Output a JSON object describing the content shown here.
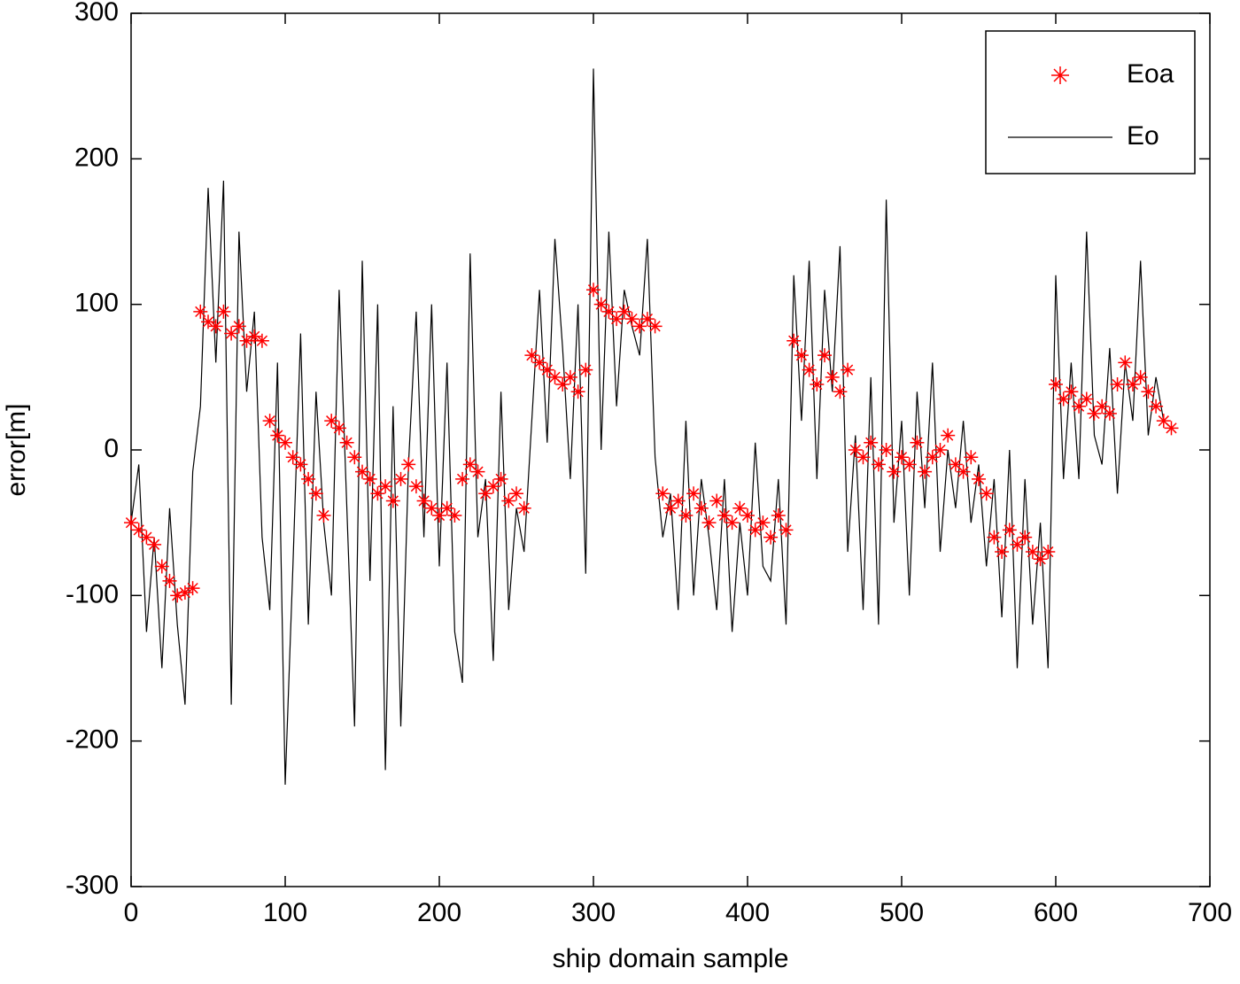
{
  "chart_data": {
    "type": "scatter-line",
    "xlabel": "ship domain sample",
    "ylabel": "error[m]",
    "xlim": [
      0,
      700
    ],
    "ylim": [
      -300,
      300
    ],
    "xticks": [
      0,
      100,
      200,
      300,
      400,
      500,
      600,
      700
    ],
    "yticks": [
      -300,
      -200,
      -100,
      0,
      100,
      200,
      300
    ],
    "legend": "top-right",
    "x": [
      0,
      5,
      10,
      15,
      20,
      25,
      30,
      35,
      40,
      45,
      50,
      55,
      60,
      65,
      70,
      75,
      80,
      85,
      90,
      95,
      100,
      105,
      110,
      115,
      120,
      125,
      130,
      135,
      140,
      145,
      150,
      155,
      160,
      165,
      170,
      175,
      180,
      185,
      190,
      195,
      200,
      205,
      210,
      215,
      220,
      225,
      230,
      235,
      240,
      245,
      250,
      255,
      260,
      265,
      270,
      275,
      280,
      285,
      290,
      295,
      300,
      305,
      310,
      315,
      320,
      325,
      330,
      335,
      340,
      345,
      350,
      355,
      360,
      365,
      370,
      375,
      380,
      385,
      390,
      395,
      400,
      405,
      410,
      415,
      420,
      425,
      430,
      435,
      440,
      445,
      450,
      455,
      460,
      465,
      470,
      475,
      480,
      485,
      490,
      495,
      500,
      505,
      510,
      515,
      520,
      525,
      530,
      535,
      540,
      545,
      550,
      555,
      560,
      565,
      570,
      575,
      580,
      585,
      590,
      595,
      600,
      605,
      610,
      615,
      620,
      625,
      630,
      635,
      640,
      645,
      650,
      655,
      660,
      665,
      670,
      675
    ],
    "series": [
      {
        "name": "Eoa",
        "color": "#ff0000",
        "marker": "star",
        "values": [
          -50,
          -55,
          -60,
          -65,
          -80,
          -90,
          -100,
          -98,
          -95,
          95,
          88,
          85,
          95,
          80,
          85,
          75,
          78,
          75,
          20,
          10,
          5,
          -5,
          -10,
          -20,
          -30,
          -45,
          20,
          15,
          5,
          -5,
          -15,
          -20,
          -30,
          -25,
          -35,
          -20,
          -10,
          -25,
          -35,
          -40,
          -45,
          -40,
          -45,
          -20,
          -10,
          -15,
          -30,
          -25,
          -20,
          -35,
          -30,
          -40,
          65,
          60,
          55,
          50,
          45,
          50,
          40,
          55,
          110,
          100,
          95,
          90,
          95,
          90,
          85,
          90,
          85,
          -30,
          -40,
          -35,
          -45,
          -30,
          -40,
          -50,
          -35,
          -45,
          -50,
          -40,
          -45,
          -55,
          -50,
          -60,
          -45,
          -55,
          75,
          65,
          55,
          45,
          65,
          50,
          40,
          55,
          0,
          -5,
          5,
          -10,
          0,
          -15,
          -5,
          -10,
          5,
          -15,
          -5,
          0,
          10,
          -10,
          -15,
          -5,
          -20,
          -30,
          -60,
          -70,
          -55,
          -65,
          -60,
          -70,
          -75,
          -70,
          45,
          35,
          40,
          30,
          35,
          25,
          30,
          25,
          45,
          60,
          45,
          50,
          40,
          30,
          20,
          15
        ]
      },
      {
        "name": "Eo",
        "color": "#000000",
        "marker": "line",
        "values": [
          -50,
          -10,
          -125,
          -60,
          -150,
          -40,
          -120,
          -175,
          -15,
          30,
          180,
          60,
          185,
          -175,
          150,
          40,
          95,
          -60,
          -110,
          60,
          -230,
          -80,
          80,
          -120,
          40,
          -50,
          -100,
          110,
          -40,
          -190,
          130,
          -90,
          100,
          -220,
          30,
          -190,
          -10,
          95,
          -60,
          100,
          -80,
          60,
          -125,
          -160,
          135,
          -60,
          -20,
          -145,
          40,
          -110,
          -40,
          -70,
          20,
          110,
          5,
          145,
          70,
          -20,
          100,
          -85,
          262,
          0,
          150,
          30,
          110,
          85,
          65,
          145,
          -5,
          -60,
          -30,
          -110,
          20,
          -100,
          -20,
          -60,
          -110,
          -20,
          -125,
          -50,
          -100,
          5,
          -80,
          -90,
          -20,
          -120,
          120,
          20,
          130,
          -20,
          110,
          40,
          140,
          -70,
          10,
          -110,
          50,
          -120,
          172,
          -50,
          20,
          -100,
          40,
          -40,
          60,
          -70,
          0,
          -40,
          20,
          -50,
          -10,
          -80,
          -20,
          -115,
          0,
          -150,
          -20,
          -120,
          -50,
          -150,
          120,
          -20,
          60,
          -20,
          150,
          10,
          -10,
          70,
          -30,
          60,
          20,
          130,
          10,
          50,
          20,
          15
        ]
      }
    ]
  }
}
